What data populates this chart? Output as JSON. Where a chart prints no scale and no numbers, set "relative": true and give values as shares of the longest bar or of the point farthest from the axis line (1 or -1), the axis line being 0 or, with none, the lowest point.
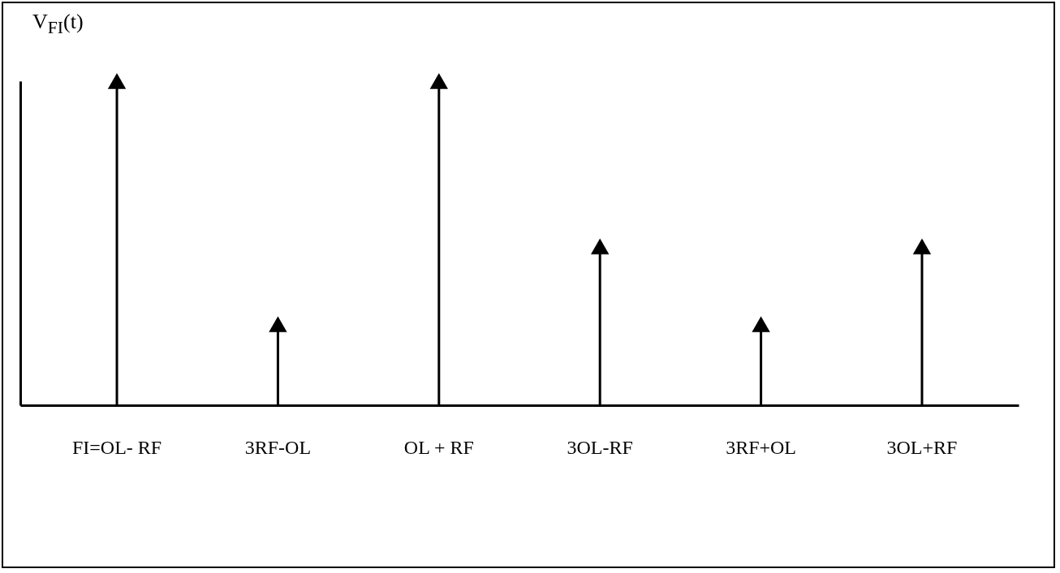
{
  "chart_data": {
    "type": "lollipop",
    "ylabel": "V$_{FI}$(t)",
    "relative": true,
    "marker": "triangle",
    "categories": [
      "FI=OL- RF",
      "3RF-OL",
      "OL + RF",
      "3OL-RF",
      "3RF+OL",
      "3OL+RF"
    ],
    "series": [
      {
        "color": "#000000",
        "values": [
          1,
          0.25,
          1,
          0.49,
          0.25,
          0.49
        ]
      }
    ]
  }
}
